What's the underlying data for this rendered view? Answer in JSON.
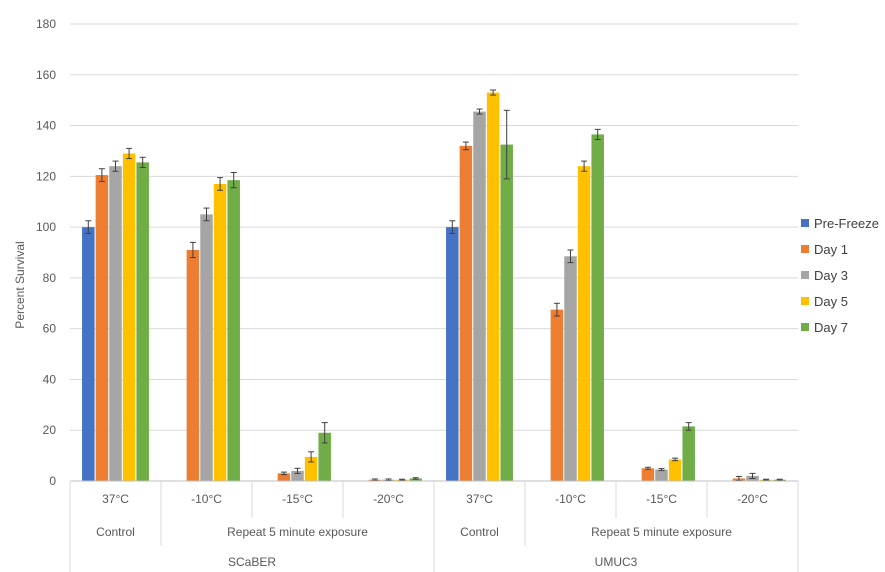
{
  "chart_data": {
    "type": "bar",
    "title": "",
    "ylabel": "Percent Survival",
    "xlabel": "",
    "ylim": [
      0,
      180
    ],
    "yticks": [
      0,
      20,
      40,
      60,
      80,
      100,
      120,
      140,
      160,
      180
    ],
    "grid": true,
    "legend_position": "right",
    "categories": [
      "37°C",
      "-10°C",
      "-15°C",
      "-20°C",
      "37°C",
      "-10°C",
      "-15°C",
      "-20°C"
    ],
    "groups": [
      {
        "label": "Control",
        "span": [
          0,
          0
        ]
      },
      {
        "label": "Repeat 5 minute exposure",
        "span": [
          1,
          3
        ]
      },
      {
        "label": "Control",
        "span": [
          4,
          4
        ]
      },
      {
        "label": "Repeat 5 minute exposure",
        "span": [
          5,
          7
        ]
      }
    ],
    "supergroups": [
      {
        "label": "SCaBER",
        "span": [
          0,
          3
        ]
      },
      {
        "label": "UMUC3",
        "span": [
          4,
          7
        ]
      }
    ],
    "series": [
      {
        "name": "Pre-Freeze",
        "color": "#4472C4",
        "values": [
          100,
          null,
          null,
          null,
          100,
          null,
          null,
          null
        ],
        "errors": [
          2.5,
          null,
          null,
          null,
          2.5,
          null,
          null,
          null
        ]
      },
      {
        "name": "Day 1",
        "color": "#ED7D31",
        "values": [
          120.5,
          91,
          3,
          0.5,
          132,
          67.5,
          5,
          1
        ],
        "errors": [
          2.5,
          3,
          0.5,
          0.3,
          1.5,
          2.5,
          0.4,
          0.8
        ]
      },
      {
        "name": "Day 3",
        "color": "#A5A5A5",
        "values": [
          124,
          105,
          4,
          0.5,
          145.5,
          88.5,
          4.5,
          2
        ],
        "errors": [
          2,
          2.5,
          1,
          0.3,
          1,
          2.5,
          0.4,
          1
        ]
      },
      {
        "name": "Day 5",
        "color": "#FFC000",
        "values": [
          129,
          117,
          9.5,
          0.5,
          153,
          124,
          8.5,
          0.5
        ],
        "errors": [
          2,
          2.5,
          2,
          0.2,
          1,
          2,
          0.5,
          0.2
        ]
      },
      {
        "name": "Day 7",
        "color": "#70AD47",
        "values": [
          125.5,
          118.5,
          19,
          1,
          132.5,
          136.5,
          21.5,
          0.5
        ],
        "errors": [
          2,
          3,
          4,
          0.3,
          13.5,
          2,
          1.5,
          0.2
        ]
      }
    ]
  }
}
